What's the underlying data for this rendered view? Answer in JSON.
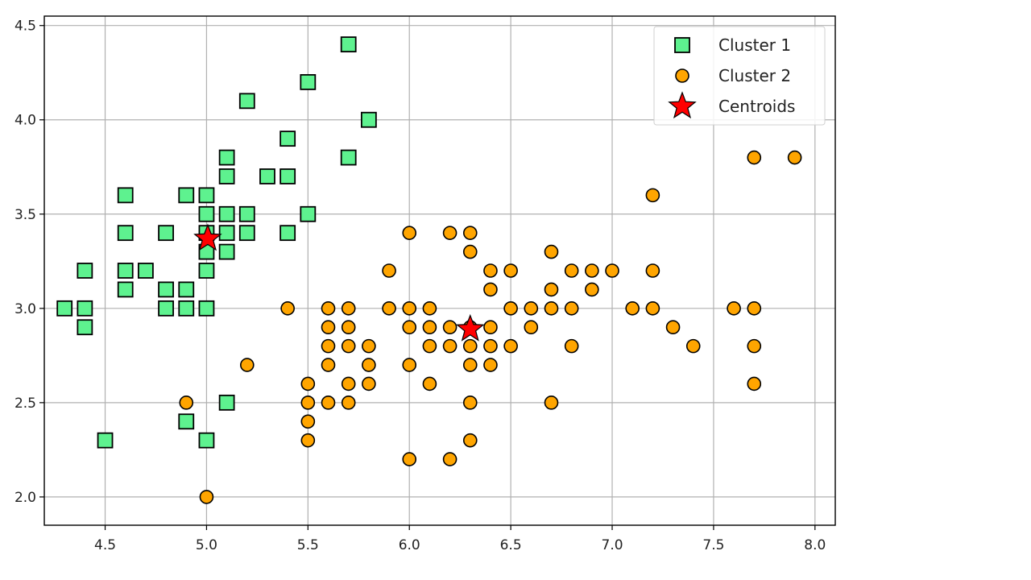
{
  "chart_data": {
    "type": "scatter",
    "title": "",
    "xlabel": "",
    "ylabel": "",
    "xlim": [
      4.2,
      8.1
    ],
    "ylim": [
      1.85,
      4.55
    ],
    "xticks": [
      4.5,
      5.0,
      5.5,
      6.0,
      6.5,
      7.0,
      7.5,
      8.0
    ],
    "yticks": [
      2.0,
      2.5,
      3.0,
      3.5,
      4.0,
      4.5
    ],
    "grid": true,
    "legend_position": "top-right",
    "series": [
      {
        "name": "Cluster 1",
        "marker": "square",
        "color": "#5ef28f",
        "points": [
          [
            4.3,
            3.0
          ],
          [
            4.4,
            3.0
          ],
          [
            4.4,
            2.9
          ],
          [
            4.4,
            3.2
          ],
          [
            4.5,
            2.3
          ],
          [
            4.6,
            3.6
          ],
          [
            4.6,
            3.4
          ],
          [
            4.6,
            3.2
          ],
          [
            4.6,
            3.1
          ],
          [
            4.7,
            3.2
          ],
          [
            4.8,
            3.4
          ],
          [
            4.8,
            3.1
          ],
          [
            4.8,
            3.0
          ],
          [
            4.9,
            3.6
          ],
          [
            4.9,
            3.1
          ],
          [
            4.9,
            3.0
          ],
          [
            4.9,
            2.4
          ],
          [
            5.0,
            3.6
          ],
          [
            5.0,
            3.5
          ],
          [
            5.0,
            3.4
          ],
          [
            5.0,
            3.3
          ],
          [
            5.0,
            3.2
          ],
          [
            5.0,
            3.0
          ],
          [
            5.0,
            2.3
          ],
          [
            5.1,
            3.8
          ],
          [
            5.1,
            3.7
          ],
          [
            5.1,
            3.5
          ],
          [
            5.1,
            3.4
          ],
          [
            5.1,
            3.3
          ],
          [
            5.1,
            2.5
          ],
          [
            5.2,
            4.1
          ],
          [
            5.2,
            3.5
          ],
          [
            5.2,
            3.4
          ],
          [
            5.3,
            3.7
          ],
          [
            5.4,
            3.9
          ],
          [
            5.4,
            3.7
          ],
          [
            5.4,
            3.4
          ],
          [
            5.5,
            4.2
          ],
          [
            5.5,
            3.5
          ],
          [
            5.7,
            4.4
          ],
          [
            5.7,
            3.8
          ],
          [
            5.8,
            4.0
          ]
        ]
      },
      {
        "name": "Cluster 2",
        "marker": "circle",
        "color": "#ffa500",
        "points": [
          [
            4.9,
            2.5
          ],
          [
            5.0,
            2.0
          ],
          [
            5.2,
            2.7
          ],
          [
            5.4,
            3.0
          ],
          [
            5.5,
            2.6
          ],
          [
            5.5,
            2.5
          ],
          [
            5.5,
            2.4
          ],
          [
            5.5,
            2.3
          ],
          [
            5.6,
            3.0
          ],
          [
            5.6,
            2.9
          ],
          [
            5.6,
            2.8
          ],
          [
            5.6,
            2.7
          ],
          [
            5.6,
            2.5
          ],
          [
            5.7,
            3.0
          ],
          [
            5.7,
            2.9
          ],
          [
            5.7,
            2.8
          ],
          [
            5.7,
            2.6
          ],
          [
            5.7,
            2.5
          ],
          [
            5.8,
            2.8
          ],
          [
            5.8,
            2.7
          ],
          [
            5.8,
            2.6
          ],
          [
            5.9,
            3.2
          ],
          [
            5.9,
            3.0
          ],
          [
            6.0,
            3.4
          ],
          [
            6.0,
            3.0
          ],
          [
            6.0,
            2.9
          ],
          [
            6.0,
            2.7
          ],
          [
            6.0,
            2.2
          ],
          [
            6.1,
            3.0
          ],
          [
            6.1,
            2.9
          ],
          [
            6.1,
            2.8
          ],
          [
            6.1,
            2.6
          ],
          [
            6.2,
            3.4
          ],
          [
            6.2,
            2.9
          ],
          [
            6.2,
            2.8
          ],
          [
            6.2,
            2.2
          ],
          [
            6.3,
            3.4
          ],
          [
            6.3,
            3.3
          ],
          [
            6.3,
            2.9
          ],
          [
            6.3,
            2.8
          ],
          [
            6.3,
            2.7
          ],
          [
            6.3,
            2.5
          ],
          [
            6.3,
            2.3
          ],
          [
            6.4,
            3.2
          ],
          [
            6.4,
            3.1
          ],
          [
            6.4,
            2.9
          ],
          [
            6.4,
            2.8
          ],
          [
            6.4,
            2.7
          ],
          [
            6.5,
            3.2
          ],
          [
            6.5,
            3.0
          ],
          [
            6.5,
            2.8
          ],
          [
            6.6,
            3.0
          ],
          [
            6.6,
            2.9
          ],
          [
            6.7,
            3.3
          ],
          [
            6.7,
            3.1
          ],
          [
            6.7,
            3.0
          ],
          [
            6.7,
            2.5
          ],
          [
            6.8,
            3.2
          ],
          [
            6.8,
            3.0
          ],
          [
            6.8,
            2.8
          ],
          [
            6.9,
            3.2
          ],
          [
            6.9,
            3.1
          ],
          [
            7.0,
            3.2
          ],
          [
            7.1,
            3.0
          ],
          [
            7.2,
            3.6
          ],
          [
            7.2,
            3.2
          ],
          [
            7.2,
            3.0
          ],
          [
            7.3,
            2.9
          ],
          [
            7.4,
            2.8
          ],
          [
            7.6,
            3.0
          ],
          [
            7.7,
            3.8
          ],
          [
            7.7,
            3.0
          ],
          [
            7.7,
            2.8
          ],
          [
            7.7,
            2.6
          ],
          [
            7.9,
            3.8
          ]
        ]
      },
      {
        "name": "Centroids",
        "marker": "star",
        "color": "#ff0000",
        "points": [
          [
            5.006,
            3.37
          ],
          [
            6.3,
            2.89
          ]
        ]
      }
    ]
  }
}
